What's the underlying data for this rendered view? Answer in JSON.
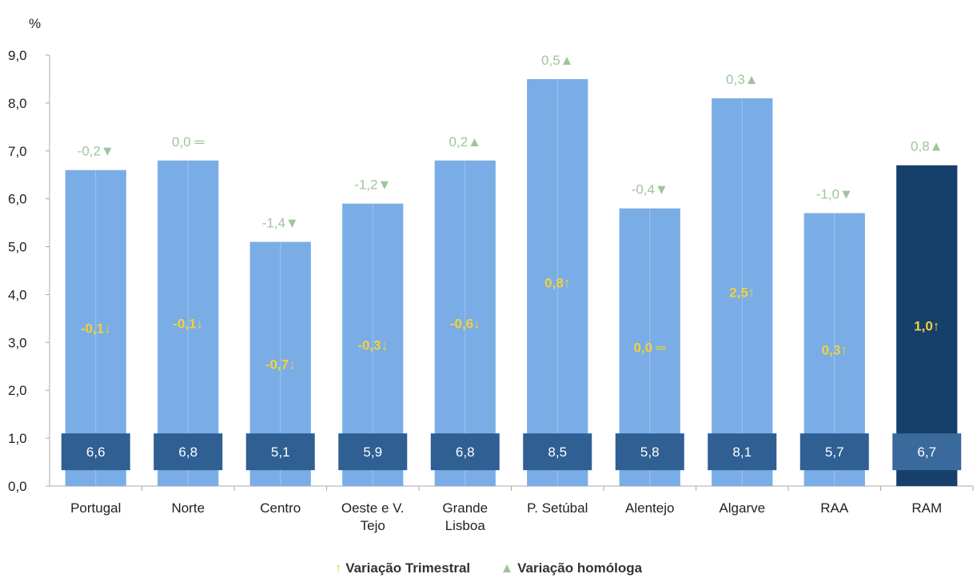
{
  "chart_data": {
    "type": "bar",
    "y_unit": "%",
    "ylim": [
      0,
      9
    ],
    "y_ticks": [
      "0,0",
      "1,0",
      "2,0",
      "3,0",
      "4,0",
      "5,0",
      "6,0",
      "7,0",
      "8,0",
      "9,0"
    ],
    "categories": [
      [
        "Portugal"
      ],
      [
        "Norte"
      ],
      [
        "Centro"
      ],
      [
        "Oeste e V.",
        "Tejo"
      ],
      [
        "Grande",
        "Lisboa"
      ],
      [
        "P. Setúbal"
      ],
      [
        "Alentejo"
      ],
      [
        "Algarve"
      ],
      [
        "RAA"
      ],
      [
        "RAM"
      ]
    ],
    "values": [
      6.6,
      6.8,
      5.1,
      5.9,
      6.8,
      8.5,
      5.8,
      8.1,
      5.7,
      6.7
    ],
    "value_labels": [
      "6,6",
      "6,8",
      "5,1",
      "5,9",
      "6,8",
      "8,5",
      "5,8",
      "8,1",
      "5,7",
      "6,7"
    ],
    "quarterly_change": [
      "-0,1↓",
      "-0,1↓",
      "-0,7↓",
      "-0,3↓",
      "-0,6↓",
      "0,8↑",
      "0,0 ═",
      "2,5↑",
      "0,3↑",
      "1,0↑"
    ],
    "yoy_change": [
      "-0,2▼",
      "0,0 ═",
      "-1,4▼",
      "-1,2▼",
      "0,2▲",
      "0,5▲",
      "-0,4▼",
      "0,3▲",
      "-1,0▼",
      "0,8▲"
    ],
    "highlight_index": 9,
    "colors": {
      "bar": "#7aade6",
      "bar_highlight": "#163f6b",
      "value_box": "#2f5f93",
      "value_box_highlight": "#3a6a9c",
      "quarterly_text": "#f0d23a",
      "yoy_text": "#9ec59a",
      "axis": "#aaaaaa"
    }
  },
  "legend": {
    "quarterly_symbol": "↑",
    "quarterly_label": "Variação Trimestral",
    "yoy_symbol": "▲",
    "yoy_label": "Variação homóloga"
  }
}
